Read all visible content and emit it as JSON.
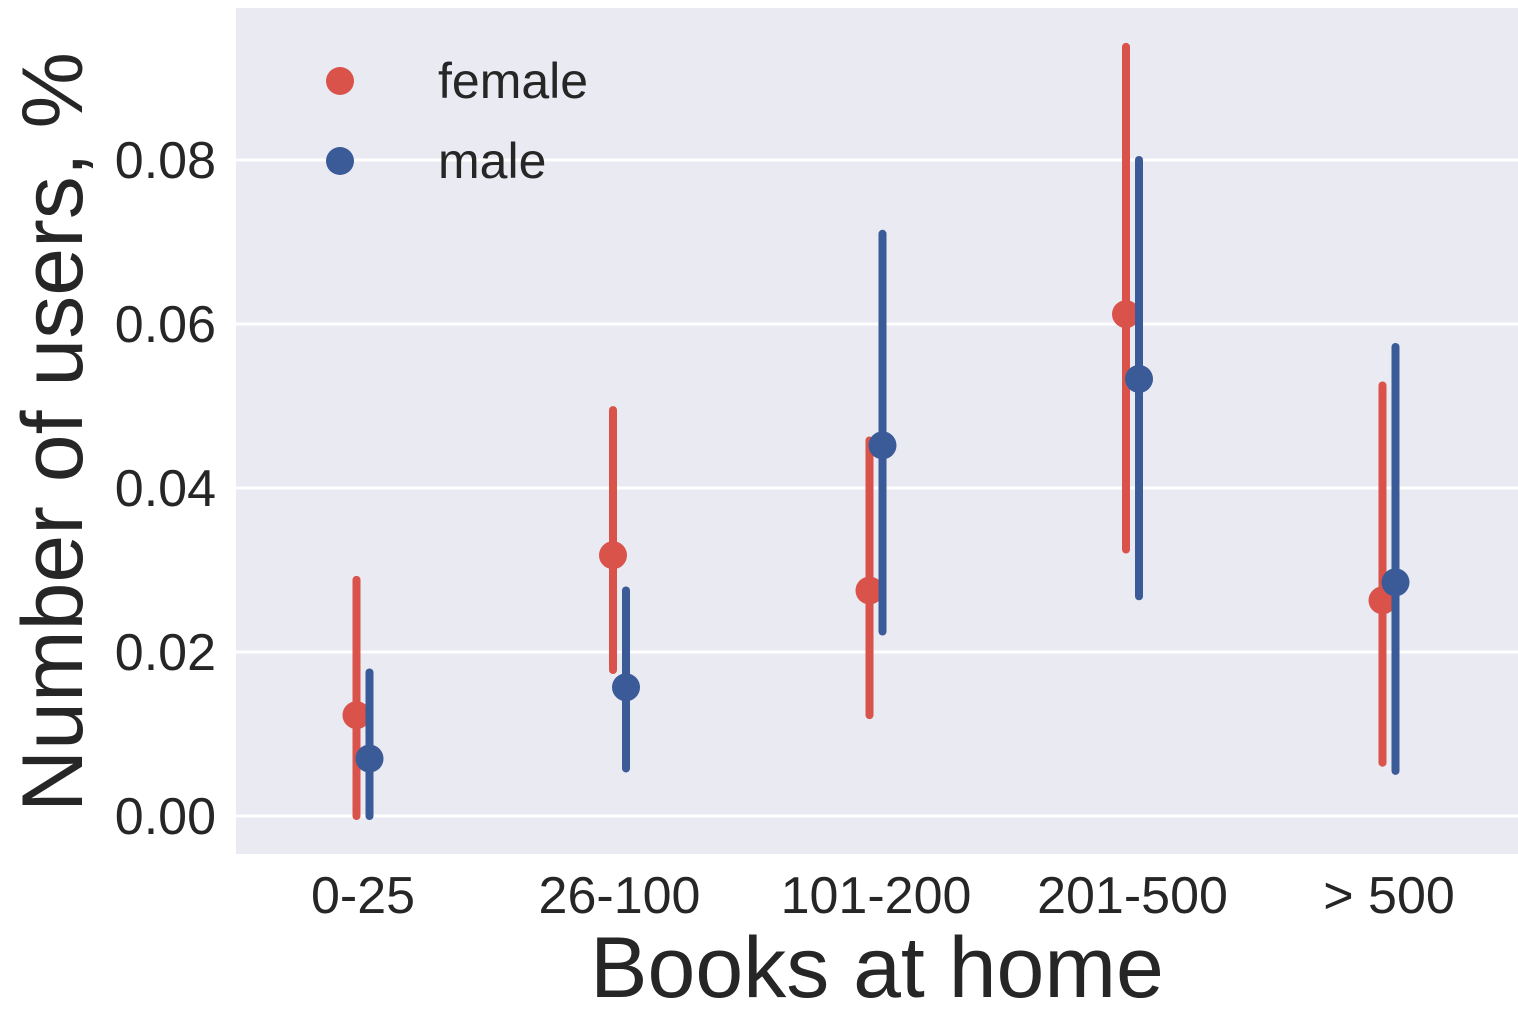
{
  "chart_data": {
    "type": "scatter",
    "subtype": "pointplot-with-error-bars",
    "title": "",
    "xlabel": "Books at home",
    "ylabel": "Number of users, %",
    "categories": [
      "0-25",
      "26-100",
      "101-200",
      "201-500",
      "> 500"
    ],
    "ylim": [
      -0.0045,
      0.0985
    ],
    "yticks": [
      0.0,
      0.02,
      0.04,
      0.06,
      0.08
    ],
    "ytick_labels": [
      "0.00",
      "0.02",
      "0.04",
      "0.06",
      "0.08"
    ],
    "grid": true,
    "background": "#eaeaf2",
    "legend_position": "top-left",
    "series": [
      {
        "name": "female",
        "color": "#d9534a",
        "values": [
          0.0123,
          0.0318,
          0.0275,
          0.0612,
          0.0263
        ],
        "ci_low": [
          0.0,
          0.0178,
          0.0123,
          0.0325,
          0.0065
        ],
        "ci_high": [
          0.0288,
          0.0495,
          0.0458,
          0.0938,
          0.0525
        ]
      },
      {
        "name": "male",
        "color": "#3a5a98",
        "values": [
          0.007,
          0.0157,
          0.0452,
          0.0533,
          0.0285
        ],
        "ci_low": [
          0.0,
          0.0058,
          0.0225,
          0.0268,
          0.0055
        ],
        "ci_high": [
          0.0175,
          0.0275,
          0.071,
          0.08,
          0.0572
        ]
      }
    ]
  }
}
